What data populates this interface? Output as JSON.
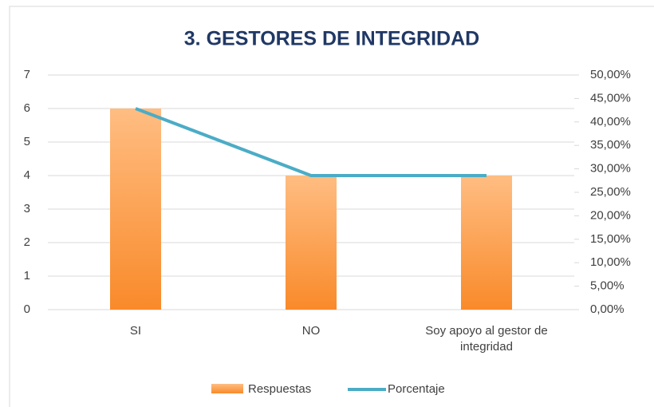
{
  "chart_data": {
    "type": "bar",
    "title": "3. GESTORES DE INTEGRIDAD",
    "categories": [
      "SI",
      "NO",
      "Soy apoyo al gestor de integridad"
    ],
    "series": [
      {
        "name": "Respuestas",
        "type": "bar",
        "color": "#f99a45",
        "values": [
          6,
          4,
          4
        ]
      },
      {
        "name": "Porcentaje",
        "type": "line",
        "axis": "y2",
        "color": "#4bacc6",
        "values": [
          42.86,
          28.57,
          28.57
        ]
      }
    ],
    "ylim": [
      0,
      7
    ],
    "yticks": [
      0,
      1,
      2,
      3,
      4,
      5,
      6,
      7
    ],
    "y2lim": [
      0,
      50
    ],
    "y2ticks": [
      {
        "value": 0,
        "label": "0,00%"
      },
      {
        "value": 5,
        "label": "5,00%"
      },
      {
        "value": 10,
        "label": "10,00%"
      },
      {
        "value": 15,
        "label": "15,00%"
      },
      {
        "value": 20,
        "label": "20,00%"
      },
      {
        "value": 25,
        "label": "25,00%"
      },
      {
        "value": 30,
        "label": "30,00%"
      },
      {
        "value": 35,
        "label": "35,00%"
      },
      {
        "value": 40,
        "label": "40,00%"
      },
      {
        "value": 45,
        "label": "45,00%"
      },
      {
        "value": 50,
        "label": "50,00%"
      }
    ],
    "grid": true,
    "legend": "bottom"
  }
}
